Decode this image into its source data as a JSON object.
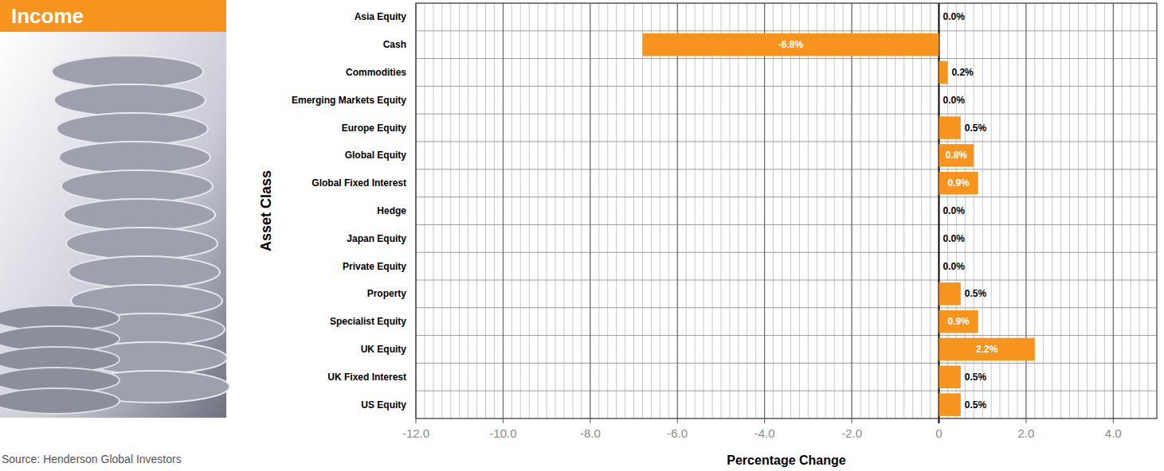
{
  "chart_data": {
    "type": "bar",
    "orientation": "horizontal",
    "title": "Income",
    "x_label": "Percentage Change",
    "y_label": "Asset Class",
    "annotations": [
      "Source: Henderson Global Investors"
    ],
    "categories": [
      "Asia Equity",
      "Cash",
      "Commodities",
      "Emerging Markets Equity",
      "Europe Equity",
      "Global Equity",
      "Global Fixed Interest",
      "Hedge",
      "Japan Equity",
      "Private Equity",
      "Property",
      "Specialist Equity",
      "UK Equity",
      "UK Fixed Interest",
      "US Equity"
    ],
    "values": [
      0.0,
      -6.8,
      0.2,
      0.0,
      0.5,
      0.8,
      0.9,
      0.0,
      0.0,
      0.0,
      0.5,
      0.9,
      2.2,
      0.5,
      0.5
    ],
    "value_labels": [
      "0.0%",
      "-6.8%",
      "0.2%",
      "0.0%",
      "0.5%",
      "0.8%",
      "0.9%",
      "0.0%",
      "0.0%",
      "0.0%",
      "0.5%",
      "0.9%",
      "2.2%",
      "0.5%",
      "0.5%"
    ],
    "color": "#f7941d",
    "xlim": [
      -12,
      5
    ],
    "xticks": [
      {
        "value": -12,
        "label": "-12.0"
      },
      {
        "value": -10,
        "label": "-10.0"
      },
      {
        "value": -8,
        "label": "-8.0"
      },
      {
        "value": -6,
        "label": "-6.0"
      },
      {
        "value": -4,
        "label": "-4.0"
      },
      {
        "value": -2,
        "label": "-2.0"
      },
      0,
      {
        "value": 2,
        "label": "2.0"
      },
      {
        "value": 4,
        "label": "4.0"
      }
    ],
    "grid": true,
    "data_labels": true
  }
}
